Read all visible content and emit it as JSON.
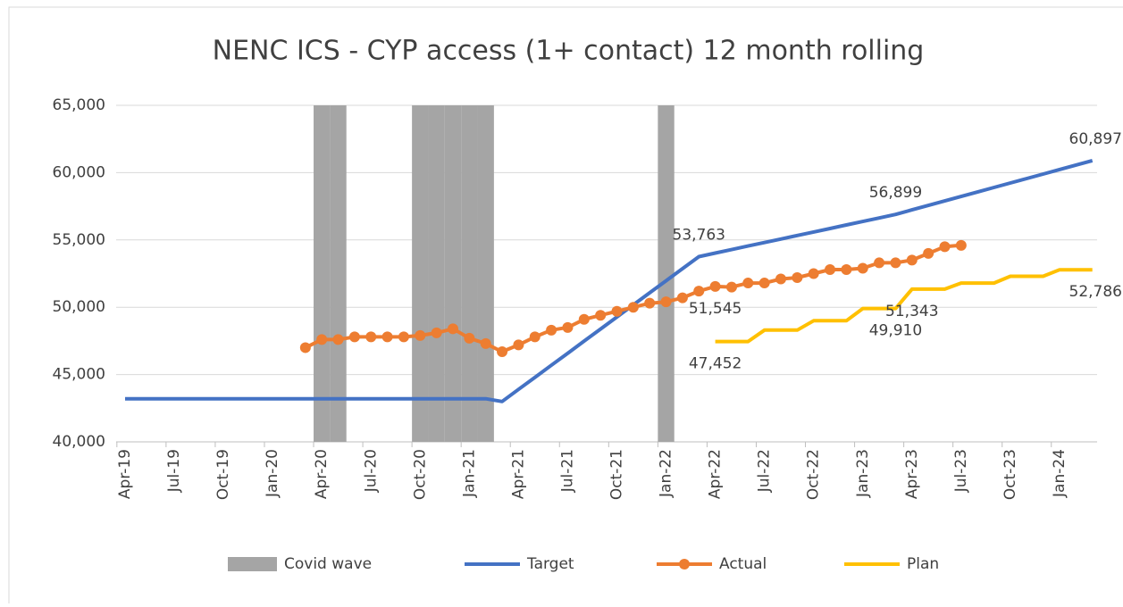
{
  "chart_data": {
    "type": "line",
    "title": "NENC ICS - CYP access (1+ contact) 12 month rolling",
    "categories": [
      "Apr-19",
      null,
      null,
      "Jul-19",
      null,
      null,
      "Oct-19",
      null,
      null,
      "Jan-20",
      null,
      null,
      "Apr-20",
      null,
      null,
      "Jul-20",
      null,
      null,
      "Oct-20",
      null,
      null,
      "Jan-21",
      null,
      null,
      "Apr-21",
      null,
      null,
      "Jul-21",
      null,
      null,
      "Oct-21",
      null,
      null,
      "Jan-22",
      null,
      null,
      "Apr-22",
      null,
      null,
      "Jul-22",
      null,
      null,
      "Oct-22",
      null,
      null,
      "Jan-23",
      null,
      null,
      "Apr-23",
      null,
      null,
      "Jul-23",
      null,
      null,
      "Oct-23",
      null,
      null,
      "Jan-24",
      null,
      null
    ],
    "ylim": [
      40000,
      65000
    ],
    "yticks": [
      {
        "value": 40000,
        "label": "40,000"
      },
      {
        "value": 45000,
        "label": "45,000"
      },
      {
        "value": 50000,
        "label": "50,000"
      },
      {
        "value": 55000,
        "label": "55,000"
      },
      {
        "value": 60000,
        "label": "60,000"
      },
      {
        "value": 65000,
        "label": "65,000"
      }
    ],
    "grid": true,
    "legend": "bottom",
    "series": [
      {
        "name": "Covid wave",
        "type": "bar",
        "color": "#a5a5a5",
        "values": [
          null,
          null,
          null,
          null,
          null,
          null,
          null,
          null,
          null,
          null,
          null,
          null,
          65000,
          65000,
          null,
          null,
          null,
          null,
          65000,
          65000,
          65000,
          65000,
          65000,
          null,
          null,
          null,
          null,
          null,
          null,
          null,
          null,
          null,
          null,
          65000,
          null,
          null,
          null,
          null,
          null,
          null,
          null,
          null,
          null,
          null,
          null,
          null,
          null,
          null,
          null,
          null,
          null,
          null,
          null,
          null,
          null,
          null,
          null,
          null,
          null,
          null
        ]
      },
      {
        "name": "Target",
        "type": "line",
        "color": "#4472c4",
        "values": [
          43200,
          43200,
          43200,
          43200,
          43200,
          43200,
          43200,
          43200,
          43200,
          43200,
          43200,
          43200,
          43200,
          43200,
          43200,
          43200,
          43200,
          43200,
          43200,
          43200,
          43200,
          43200,
          43200,
          43000,
          43897,
          44794,
          45691,
          46588,
          47485,
          48382,
          49279,
          50176,
          51073,
          51970,
          52867,
          53763,
          54024,
          54285,
          54546,
          54807,
          55068,
          55329,
          55590,
          55851,
          56112,
          56373,
          56634,
          56899,
          57232,
          57565,
          57898,
          58231,
          58564,
          58897,
          59230,
          59563,
          59896,
          60229,
          60562,
          60897
        ],
        "value_labels": [
          null,
          null,
          null,
          null,
          null,
          null,
          null,
          null,
          null,
          null,
          null,
          null,
          null,
          null,
          null,
          null,
          null,
          null,
          null,
          null,
          null,
          null,
          null,
          null,
          null,
          null,
          null,
          null,
          null,
          null,
          null,
          null,
          null,
          null,
          null,
          "53,763",
          null,
          null,
          null,
          null,
          null,
          null,
          null,
          null,
          null,
          null,
          null,
          "56,899",
          null,
          null,
          null,
          null,
          null,
          null,
          null,
          null,
          null,
          null,
          null,
          "60,897"
        ]
      },
      {
        "name": "Actual",
        "type": "line",
        "marker": true,
        "color": "#ed7d31",
        "values": [
          null,
          null,
          null,
          null,
          null,
          null,
          null,
          null,
          null,
          null,
          null,
          47000,
          47600,
          47600,
          47800,
          47800,
          47800,
          47800,
          47900,
          48100,
          48400,
          47700,
          47300,
          46700,
          47200,
          47800,
          48300,
          48500,
          49100,
          49400,
          49700,
          50000,
          50300,
          50400,
          50700,
          51200,
          51545,
          51500,
          51800,
          51800,
          52100,
          52200,
          52500,
          52800,
          52800,
          52900,
          53300,
          53300,
          53500,
          54000,
          54500,
          54600,
          null,
          null,
          null,
          null,
          null,
          null,
          null,
          null
        ],
        "value_labels": [
          null,
          null,
          null,
          null,
          null,
          null,
          null,
          null,
          null,
          null,
          null,
          null,
          null,
          null,
          null,
          null,
          null,
          null,
          null,
          null,
          null,
          null,
          null,
          null,
          null,
          null,
          null,
          null,
          null,
          null,
          null,
          null,
          null,
          null,
          null,
          null,
          "51,545",
          null,
          null,
          null,
          null,
          null,
          null,
          null,
          null,
          null,
          null,
          null,
          null,
          null,
          null,
          null,
          null,
          null,
          null,
          null,
          null,
          null,
          null,
          null
        ]
      },
      {
        "name": "Plan",
        "type": "line",
        "color": "#ffc000",
        "values": [
          null,
          null,
          null,
          null,
          null,
          null,
          null,
          null,
          null,
          null,
          null,
          null,
          null,
          null,
          null,
          null,
          null,
          null,
          null,
          null,
          null,
          null,
          null,
          null,
          null,
          null,
          null,
          null,
          null,
          null,
          null,
          null,
          null,
          null,
          null,
          null,
          47452,
          47452,
          47452,
          48300,
          48300,
          48300,
          49000,
          49000,
          49000,
          49910,
          49910,
          49910,
          51343,
          51343,
          51343,
          51800,
          51800,
          51800,
          52300,
          52300,
          52300,
          52786,
          52786,
          52786
        ],
        "value_labels": [
          null,
          null,
          null,
          null,
          null,
          null,
          null,
          null,
          null,
          null,
          null,
          null,
          null,
          null,
          null,
          null,
          null,
          null,
          null,
          null,
          null,
          null,
          null,
          null,
          null,
          null,
          null,
          null,
          null,
          null,
          null,
          null,
          null,
          null,
          null,
          null,
          "47,452",
          null,
          null,
          null,
          null,
          null,
          null,
          null,
          null,
          null,
          null,
          "49,910",
          "51,343",
          null,
          null,
          null,
          null,
          null,
          null,
          null,
          null,
          null,
          null,
          "52,786"
        ]
      }
    ]
  }
}
